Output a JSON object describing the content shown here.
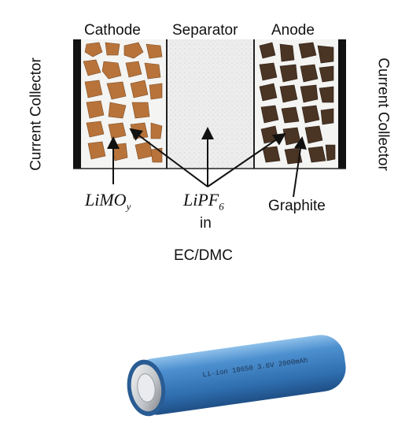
{
  "diagram": {
    "regions": {
      "cathode": "Cathode",
      "separator": "Separator",
      "anode": "Anode"
    },
    "collector_left": "Current Collector",
    "collector_right": "Current Collector",
    "labels": {
      "cathode_material_main": "LiMO",
      "cathode_material_sub": "y",
      "electrolyte_salt_main": "LiPF",
      "electrolyte_salt_sub": "6",
      "electrolyte_in": "in",
      "electrolyte_solvent": "EC/DMC",
      "anode_material": "Graphite"
    },
    "colors": {
      "cathode_particle": "#b8733a",
      "anode_particle": "#4a3424",
      "collector": "#111111",
      "separator_fill": "#ececec"
    }
  },
  "battery": {
    "label": "Li-ion 18650 3.6V 2000mAh",
    "color": "#3d7fc0"
  }
}
